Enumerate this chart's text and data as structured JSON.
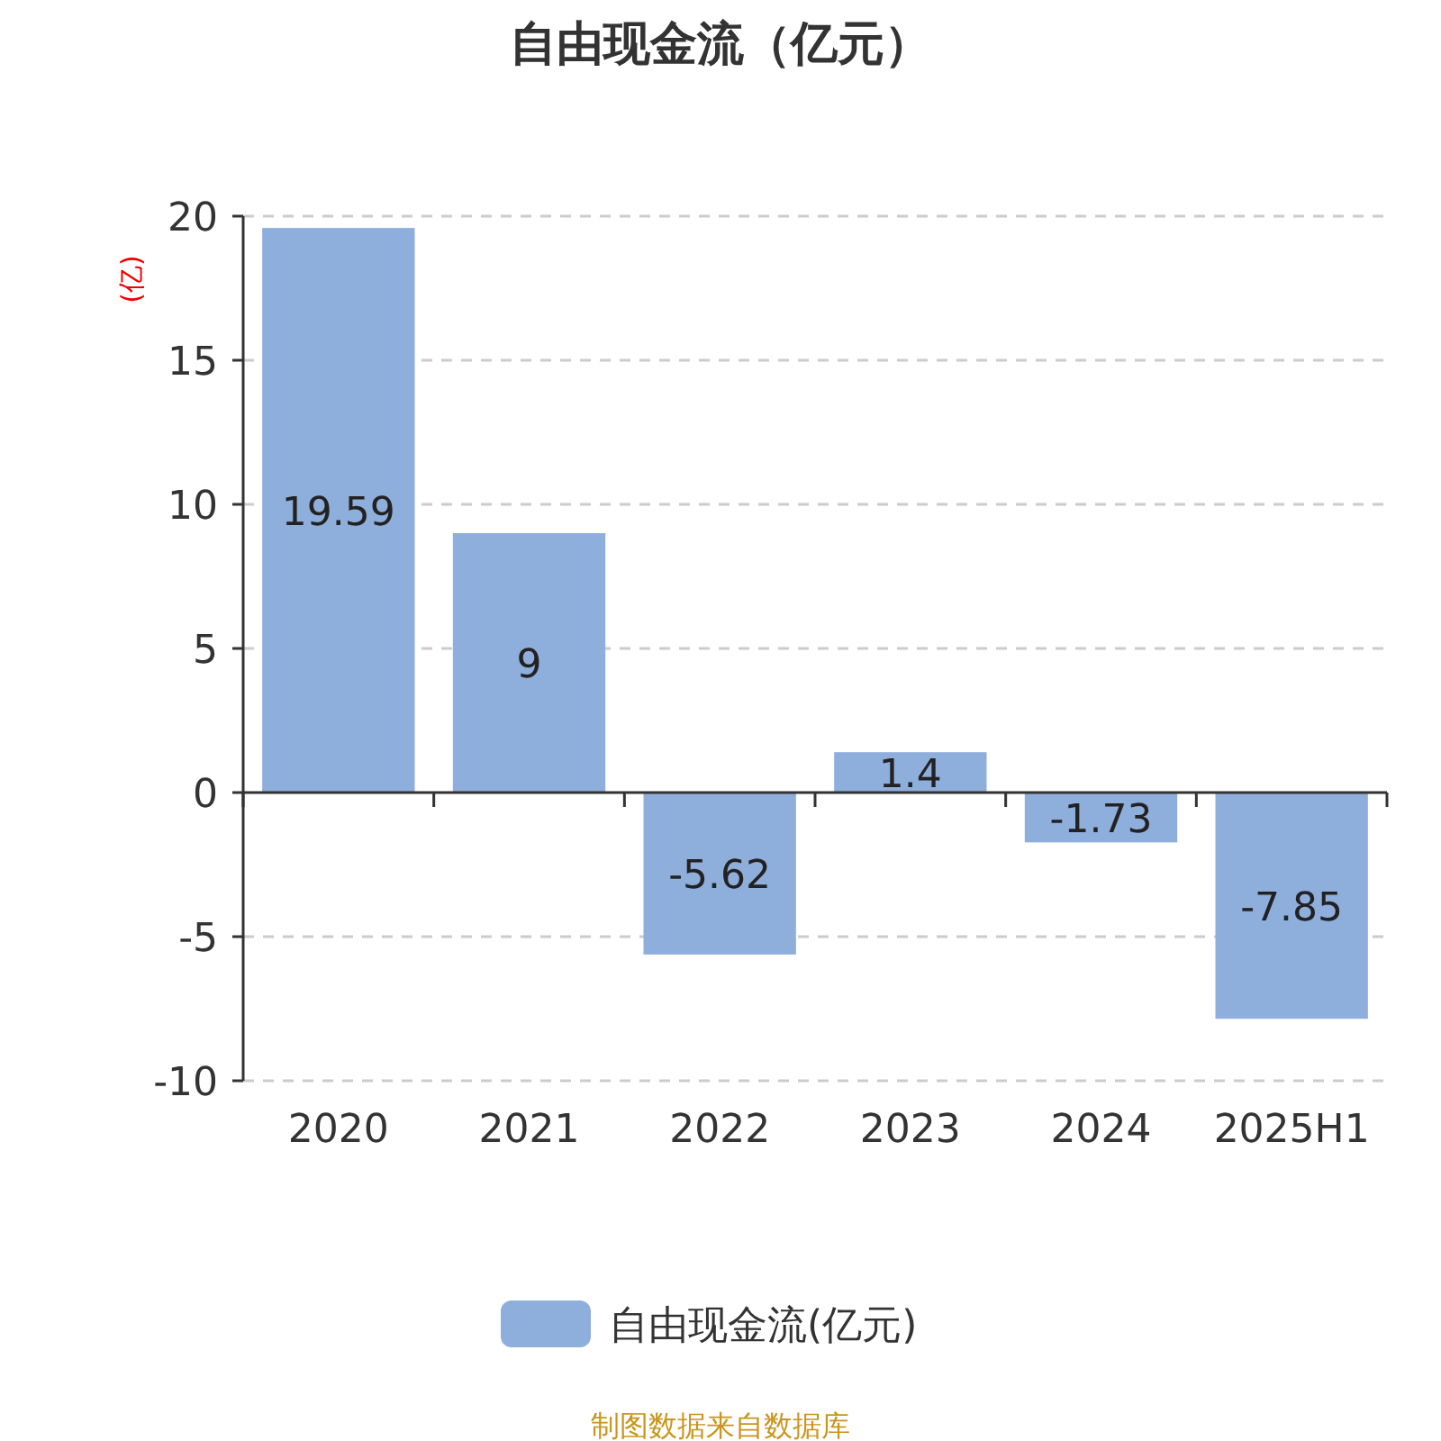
{
  "chart_data": {
    "type": "bar",
    "title": "自由现金流（亿元）",
    "ylabel": "(亿)",
    "categories": [
      "2020",
      "2021",
      "2022",
      "2023",
      "2024",
      "2025H1"
    ],
    "series": [
      {
        "name": "自由现金流(亿元)",
        "color": "#8eaedb",
        "values": [
          19.59,
          9,
          -5.62,
          1.4,
          -1.73,
          -7.85
        ]
      }
    ],
    "ylim": [
      -10,
      20
    ],
    "yticks": [
      -10,
      -5,
      0,
      5,
      10,
      15,
      20
    ],
    "grid": "y",
    "legend": "bottom",
    "data_labels": true,
    "annotations": [
      "制图数据来自数据库"
    ]
  }
}
